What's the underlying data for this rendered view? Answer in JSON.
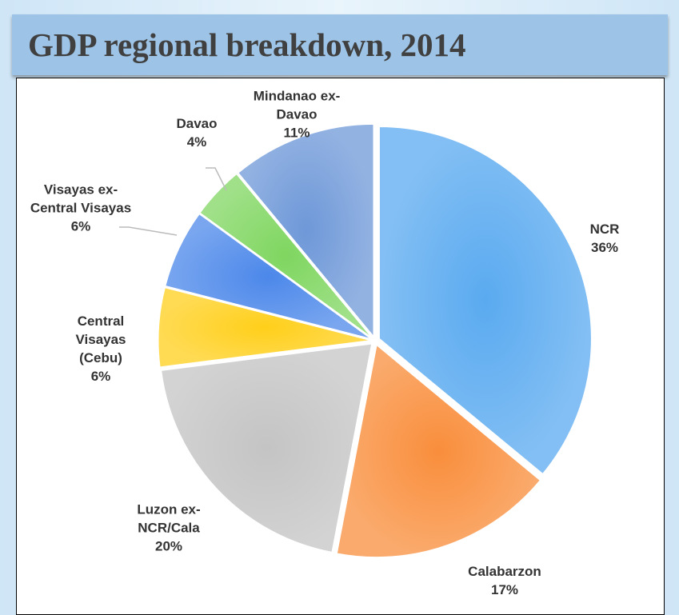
{
  "chart_data": {
    "type": "pie",
    "title": "GDP regional breakdown, 2014",
    "categories": [
      "NCR",
      "Calabarzon",
      "Luzon ex-NCR/Cala",
      "Central Visayas (Cebu)",
      "Visayas ex-Central Visayas",
      "Davao",
      "Mindanao ex-Davao"
    ],
    "values": [
      36,
      17,
      20,
      6,
      6,
      4,
      11
    ],
    "value_labels": [
      "36%",
      "17%",
      "20%",
      "6%",
      "6%",
      "4%",
      "11%"
    ],
    "colors": [
      "#5aaaf0",
      "#f98e3c",
      "#c4c4c4",
      "#ffcf1a",
      "#4c88ea",
      "#7fd660",
      "#6e98d8"
    ]
  }
}
